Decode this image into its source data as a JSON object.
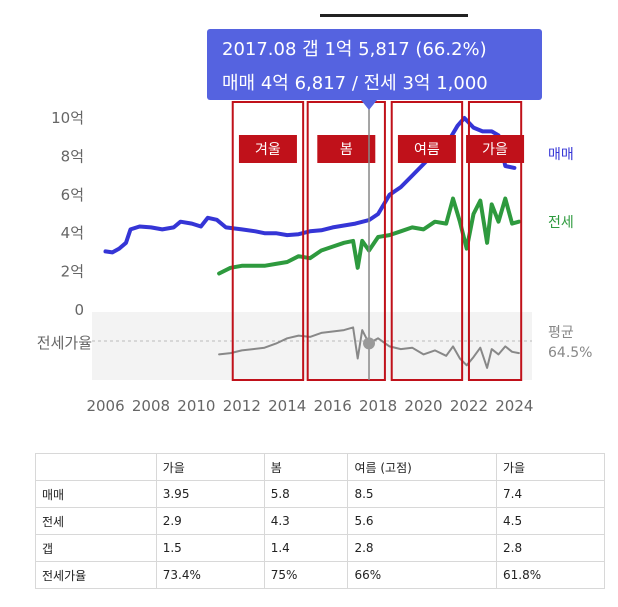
{
  "chart_data": {
    "type": "line",
    "tooltip": {
      "line1": "2017.08  갭 1억 5,817 (66.2%)",
      "line2": "매매 4억 6,817 / 전세 3억 1,000",
      "x": 2017.6,
      "sale": 4.68,
      "jeonse": 3.1,
      "ratio": 66.2
    },
    "x_ticks": [
      "2006",
      "2008",
      "2010",
      "2012",
      "2014",
      "2016",
      "2018",
      "2020",
      "2022",
      "2024"
    ],
    "y_ticks": [
      {
        "value": 10,
        "label": "10억"
      },
      {
        "value": 8,
        "label": "8억"
      },
      {
        "value": 6,
        "label": "6억"
      },
      {
        "value": 4,
        "label": "4억"
      },
      {
        "value": 2,
        "label": "2억"
      },
      {
        "value": 0,
        "label": "0"
      }
    ],
    "xlim": [
      2005.8,
      2024.6
    ],
    "ylim": [
      0,
      10
    ],
    "lower_panel": {
      "label": "전세가율",
      "avg_label": "평균",
      "avg_value": "64.5%",
      "ratio_range": [
        45,
        85
      ]
    },
    "seasons": [
      {
        "label": "겨울",
        "x_start": 2011.6,
        "x_end": 2014.7
      },
      {
        "label": "봄",
        "x_start": 2014.9,
        "x_end": 2018.3
      },
      {
        "label": "여름",
        "x_start": 2018.6,
        "x_end": 2021.7
      },
      {
        "label": "가을",
        "x_start": 2022.0,
        "x_end": 2024.3
      }
    ],
    "series": [
      {
        "name": "매매",
        "color": "#3535d6",
        "points": [
          [
            2006.0,
            3.05
          ],
          [
            2006.3,
            3.0
          ],
          [
            2006.6,
            3.2
          ],
          [
            2006.9,
            3.5
          ],
          [
            2007.1,
            4.2
          ],
          [
            2007.5,
            4.35
          ],
          [
            2008.0,
            4.3
          ],
          [
            2008.5,
            4.2
          ],
          [
            2009.0,
            4.3
          ],
          [
            2009.3,
            4.6
          ],
          [
            2009.8,
            4.5
          ],
          [
            2010.2,
            4.35
          ],
          [
            2010.5,
            4.8
          ],
          [
            2010.9,
            4.7
          ],
          [
            2011.3,
            4.3
          ],
          [
            2012.0,
            4.2
          ],
          [
            2012.6,
            4.1
          ],
          [
            2013.0,
            4.0
          ],
          [
            2013.5,
            4.0
          ],
          [
            2014.0,
            3.9
          ],
          [
            2014.5,
            3.95
          ],
          [
            2015.0,
            4.1
          ],
          [
            2015.5,
            4.15
          ],
          [
            2016.0,
            4.3
          ],
          [
            2016.5,
            4.4
          ],
          [
            2017.0,
            4.5
          ],
          [
            2017.6,
            4.68
          ],
          [
            2018.0,
            5.0
          ],
          [
            2018.5,
            6.0
          ],
          [
            2019.0,
            6.4
          ],
          [
            2019.5,
            7.0
          ],
          [
            2020.0,
            7.6
          ],
          [
            2020.5,
            8.2
          ],
          [
            2021.0,
            8.6
          ],
          [
            2021.5,
            9.6
          ],
          [
            2021.8,
            10.0
          ],
          [
            2022.2,
            9.5
          ],
          [
            2022.6,
            9.3
          ],
          [
            2023.0,
            9.3
          ],
          [
            2023.3,
            9.1
          ],
          [
            2023.6,
            7.5
          ],
          [
            2024.0,
            7.4
          ]
        ]
      },
      {
        "name": "전세",
        "color": "#2e9a3e",
        "points": [
          [
            2011.0,
            1.9
          ],
          [
            2011.5,
            2.2
          ],
          [
            2012.0,
            2.3
          ],
          [
            2012.5,
            2.3
          ],
          [
            2013.0,
            2.3
          ],
          [
            2013.5,
            2.4
          ],
          [
            2014.0,
            2.5
          ],
          [
            2014.5,
            2.8
          ],
          [
            2015.0,
            2.7
          ],
          [
            2015.5,
            3.1
          ],
          [
            2016.0,
            3.3
          ],
          [
            2016.5,
            3.5
          ],
          [
            2016.9,
            3.6
          ],
          [
            2017.1,
            2.2
          ],
          [
            2017.3,
            3.6
          ],
          [
            2017.6,
            3.1
          ],
          [
            2018.0,
            3.8
          ],
          [
            2018.5,
            3.9
          ],
          [
            2019.0,
            4.1
          ],
          [
            2019.5,
            4.3
          ],
          [
            2020.0,
            4.2
          ],
          [
            2020.5,
            4.6
          ],
          [
            2021.0,
            4.5
          ],
          [
            2021.3,
            5.8
          ],
          [
            2021.6,
            4.6
          ],
          [
            2021.9,
            3.2
          ],
          [
            2022.2,
            5.0
          ],
          [
            2022.5,
            5.7
          ],
          [
            2022.8,
            3.5
          ],
          [
            2023.0,
            5.5
          ],
          [
            2023.3,
            4.6
          ],
          [
            2023.6,
            5.8
          ],
          [
            2023.9,
            4.5
          ],
          [
            2024.2,
            4.6
          ]
        ]
      },
      {
        "name": "전세가율",
        "color": "#888888",
        "points": [
          [
            2011.0,
            58
          ],
          [
            2011.5,
            59
          ],
          [
            2012.0,
            61
          ],
          [
            2012.5,
            62
          ],
          [
            2013.0,
            63
          ],
          [
            2013.5,
            66
          ],
          [
            2014.0,
            70
          ],
          [
            2014.5,
            72
          ],
          [
            2015.0,
            71
          ],
          [
            2015.5,
            74
          ],
          [
            2016.0,
            75
          ],
          [
            2016.5,
            76
          ],
          [
            2016.9,
            78
          ],
          [
            2017.1,
            55
          ],
          [
            2017.3,
            76
          ],
          [
            2017.6,
            66.2
          ],
          [
            2018.0,
            70
          ],
          [
            2018.5,
            64
          ],
          [
            2019.0,
            62
          ],
          [
            2019.5,
            63
          ],
          [
            2020.0,
            58
          ],
          [
            2020.5,
            61
          ],
          [
            2021.0,
            57
          ],
          [
            2021.3,
            64
          ],
          [
            2021.6,
            55
          ],
          [
            2021.9,
            50
          ],
          [
            2022.2,
            56
          ],
          [
            2022.5,
            63
          ],
          [
            2022.8,
            48
          ],
          [
            2023.0,
            62
          ],
          [
            2023.3,
            58
          ],
          [
            2023.6,
            64
          ],
          [
            2023.9,
            60
          ],
          [
            2024.2,
            59
          ]
        ]
      }
    ]
  },
  "table": {
    "header": [
      "",
      "가을",
      "봄",
      "여름 (고점)",
      "가을"
    ],
    "rows": [
      [
        "매매",
        "3.95",
        "5.8",
        "8.5",
        "7.4"
      ],
      [
        "전세",
        "2.9",
        "4.3",
        "5.6",
        "4.5"
      ],
      [
        "갭",
        "1.5",
        "1.4",
        "2.8",
        "2.8"
      ],
      [
        "전세가율",
        "73.4%",
        "75%",
        "66%",
        "61.8%"
      ]
    ]
  }
}
